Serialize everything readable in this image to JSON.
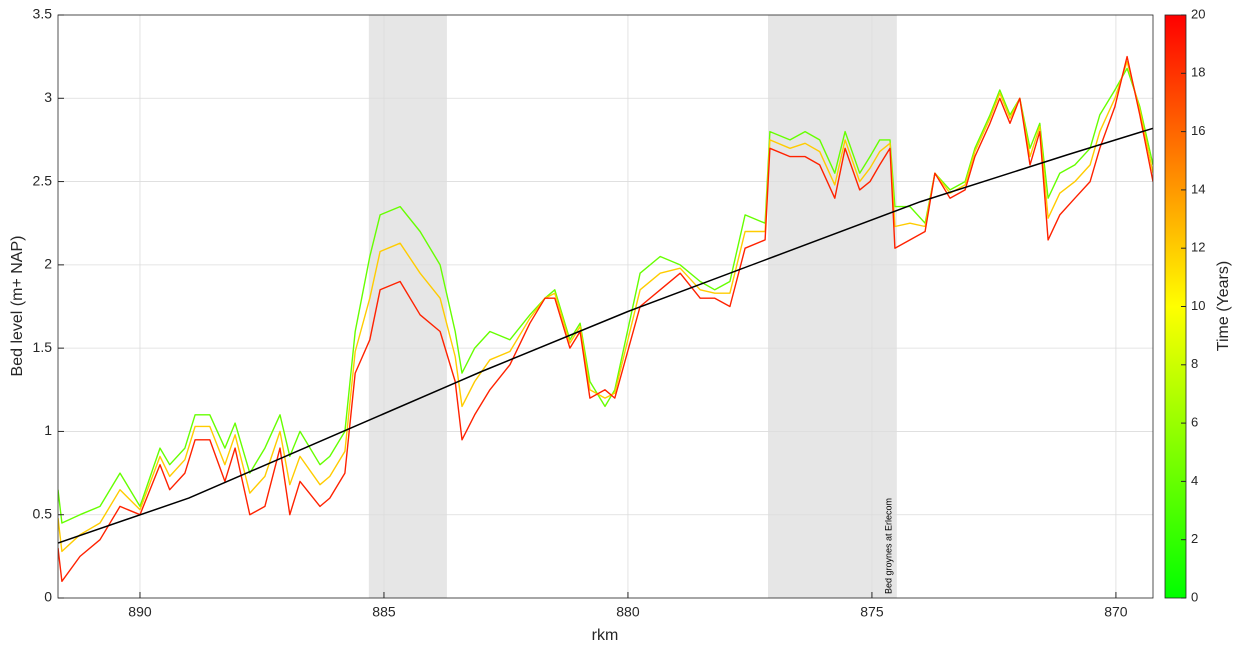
{
  "chart_data": {
    "type": "line",
    "xlabel": "rkm",
    "ylabel": "Bed level (m+ NAP)",
    "xlim": [
      891.68,
      869.24
    ],
    "x_reversed": true,
    "xticks": [
      890,
      885,
      880,
      875,
      870
    ],
    "ylim": [
      0,
      3.5
    ],
    "yticks": [
      0,
      0.5,
      1,
      1.5,
      2,
      2.5,
      3,
      3.5
    ],
    "grid": true,
    "shaded": [
      [
        885.31,
        883.71
      ],
      [
        877.13,
        874.49
      ]
    ],
    "annotation": {
      "text": "Bed groynes at Erlecom",
      "x": 874.65
    },
    "colorbar": {
      "label": "Time (Years)",
      "lim": [
        0,
        20
      ],
      "ticks": [
        0,
        2,
        4,
        6,
        8,
        10,
        12,
        14,
        16,
        18,
        20
      ],
      "colors": [
        "#00ff00",
        "#ffff00",
        "#ff0000"
      ]
    },
    "x": [
      891.68,
      891.6,
      891.23,
      890.82,
      890.41,
      890.0,
      889.59,
      889.39,
      889.08,
      888.87,
      888.57,
      888.26,
      888.05,
      887.75,
      887.44,
      887.13,
      886.93,
      886.72,
      886.31,
      886.11,
      885.8,
      885.59,
      885.29,
      885.08,
      884.67,
      884.26,
      883.85,
      883.54,
      883.4,
      883.14,
      882.83,
      882.42,
      882.01,
      881.7,
      881.5,
      881.19,
      880.98,
      880.78,
      880.47,
      880.27,
      879.75,
      879.34,
      878.93,
      878.52,
      878.22,
      877.91,
      877.6,
      877.19,
      877.09,
      876.68,
      876.37,
      876.07,
      875.76,
      875.55,
      875.25,
      875.04,
      874.84,
      874.63,
      874.53,
      874.22,
      873.91,
      873.71,
      873.4,
      873.09,
      872.89,
      872.58,
      872.38,
      872.17,
      871.97,
      871.76,
      871.56,
      871.39,
      871.15,
      870.84,
      870.53,
      870.33,
      870.02,
      869.77,
      869.51,
      869.24
    ],
    "series": [
      {
        "color": "#66ff00",
        "values": [
          0.65,
          0.45,
          0.5,
          0.55,
          0.75,
          0.55,
          0.9,
          0.8,
          0.9,
          1.1,
          1.1,
          0.9,
          1.05,
          0.75,
          0.9,
          1.1,
          0.85,
          1.0,
          0.8,
          0.85,
          1.0,
          1.6,
          2.05,
          2.3,
          2.35,
          2.2,
          2.0,
          1.6,
          1.35,
          1.5,
          1.6,
          1.55,
          1.7,
          1.8,
          1.85,
          1.55,
          1.65,
          1.3,
          1.15,
          1.25,
          1.95,
          2.05,
          2.0,
          1.9,
          1.85,
          1.9,
          2.3,
          2.25,
          2.8,
          2.75,
          2.8,
          2.75,
          2.55,
          2.8,
          2.55,
          2.65,
          2.75,
          2.75,
          2.35,
          2.35,
          2.25,
          2.55,
          2.45,
          2.5,
          2.7,
          2.9,
          3.05,
          2.9,
          3.0,
          2.7,
          2.85,
          2.4,
          2.55,
          2.6,
          2.7,
          2.9,
          3.05,
          3.18,
          2.95,
          2.6
        ]
      },
      {
        "color": "#ffcc00",
        "values": [
          0.48,
          0.28,
          0.38,
          0.45,
          0.65,
          0.53,
          0.85,
          0.73,
          0.83,
          1.03,
          1.03,
          0.8,
          0.98,
          0.63,
          0.73,
          1.0,
          0.68,
          0.85,
          0.68,
          0.73,
          0.88,
          1.48,
          1.8,
          2.08,
          2.13,
          1.95,
          1.8,
          1.45,
          1.15,
          1.3,
          1.43,
          1.48,
          1.68,
          1.8,
          1.83,
          1.53,
          1.63,
          1.25,
          1.2,
          1.23,
          1.85,
          1.95,
          1.98,
          1.85,
          1.83,
          1.83,
          2.2,
          2.2,
          2.75,
          2.7,
          2.73,
          2.68,
          2.48,
          2.75,
          2.5,
          2.58,
          2.68,
          2.73,
          2.23,
          2.25,
          2.23,
          2.55,
          2.43,
          2.48,
          2.68,
          2.88,
          3.03,
          2.88,
          3.0,
          2.65,
          2.83,
          2.28,
          2.43,
          2.5,
          2.6,
          2.8,
          3.0,
          3.22,
          2.93,
          2.55
        ]
      },
      {
        "color": "#ff2200",
        "values": [
          0.3,
          0.1,
          0.25,
          0.35,
          0.55,
          0.5,
          0.8,
          0.65,
          0.75,
          0.95,
          0.95,
          0.7,
          0.9,
          0.5,
          0.55,
          0.9,
          0.5,
          0.7,
          0.55,
          0.6,
          0.75,
          1.35,
          1.55,
          1.85,
          1.9,
          1.7,
          1.6,
          1.3,
          0.95,
          1.1,
          1.25,
          1.4,
          1.65,
          1.8,
          1.8,
          1.5,
          1.6,
          1.2,
          1.25,
          1.2,
          1.75,
          1.85,
          1.95,
          1.8,
          1.8,
          1.75,
          2.1,
          2.15,
          2.7,
          2.65,
          2.65,
          2.6,
          2.4,
          2.7,
          2.45,
          2.5,
          2.6,
          2.7,
          2.1,
          2.15,
          2.2,
          2.55,
          2.4,
          2.45,
          2.65,
          2.85,
          3.0,
          2.85,
          3.0,
          2.6,
          2.8,
          2.15,
          2.3,
          2.4,
          2.5,
          2.7,
          2.95,
          3.25,
          2.9,
          2.5
        ]
      },
      {
        "color": "#000000",
        "x": [
          891.68,
          889,
          886,
          883,
          880,
          877,
          874,
          871,
          869.24
        ],
        "values": [
          0.33,
          0.6,
          0.98,
          1.36,
          1.72,
          2.05,
          2.38,
          2.66,
          2.82
        ]
      }
    ]
  }
}
